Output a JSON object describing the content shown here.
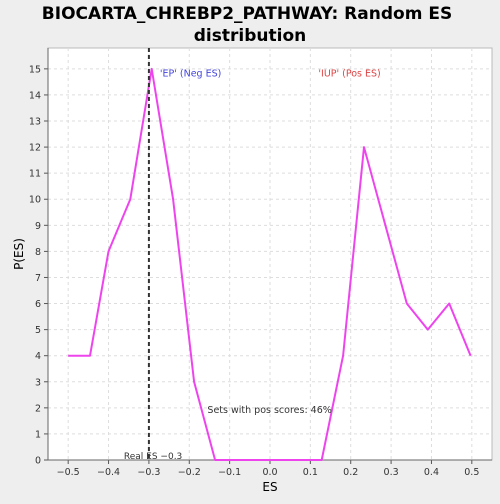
{
  "chart_data": {
    "type": "line",
    "title_line1": "BIOCARTA_CHREBP2_PATHWAY: Random ES",
    "title_line2": "distribution",
    "xlabel": "ES",
    "ylabel": "P(ES)",
    "xlim": [
      -0.55,
      0.55
    ],
    "ylim": [
      0,
      15.8
    ],
    "xticks": [
      -0.5,
      -0.4,
      -0.3,
      -0.2,
      -0.1,
      0.0,
      0.1,
      0.2,
      0.3,
      0.4,
      0.5
    ],
    "xtick_labels": [
      "−0.5",
      "−0.4",
      "−0.3",
      "−0.2",
      "−0.1",
      "0.0",
      "0.1",
      "0.2",
      "0.3",
      "0.4",
      "0.5"
    ],
    "yticks": [
      0,
      1,
      2,
      3,
      4,
      5,
      6,
      7,
      8,
      9,
      10,
      11,
      12,
      13,
      14,
      15
    ],
    "grid": true,
    "series": [
      {
        "color": "#ee44ee",
        "x": [
          -0.5,
          -0.446,
          -0.4,
          -0.346,
          -0.293,
          -0.24,
          -0.188,
          -0.136,
          -0.083,
          -0.03,
          0.023,
          0.075,
          0.128,
          0.181,
          0.233,
          0.286,
          0.339,
          0.391,
          0.444,
          0.497
        ],
        "y": [
          4,
          4,
          8,
          10,
          15,
          10,
          3,
          0,
          0,
          0,
          0,
          0,
          0,
          4,
          12,
          9,
          6,
          5,
          6,
          4
        ]
      }
    ],
    "real_es": {
      "value": -0.3,
      "label": "Real ES −0.3"
    },
    "annotations": {
      "neg": {
        "text": "'EP' (Neg ES)",
        "color": "#4444dd"
      },
      "pos": {
        "text": "'IUP' (Pos ES)",
        "color": "#dd4444"
      },
      "pos_scores": {
        "text": "Sets with pos scores: 46%"
      }
    },
    "colors": {
      "background": "#eeeeee",
      "plot_bg": "#ffffff",
      "grid": "#dddddd",
      "line": "#ee44ee"
    }
  }
}
